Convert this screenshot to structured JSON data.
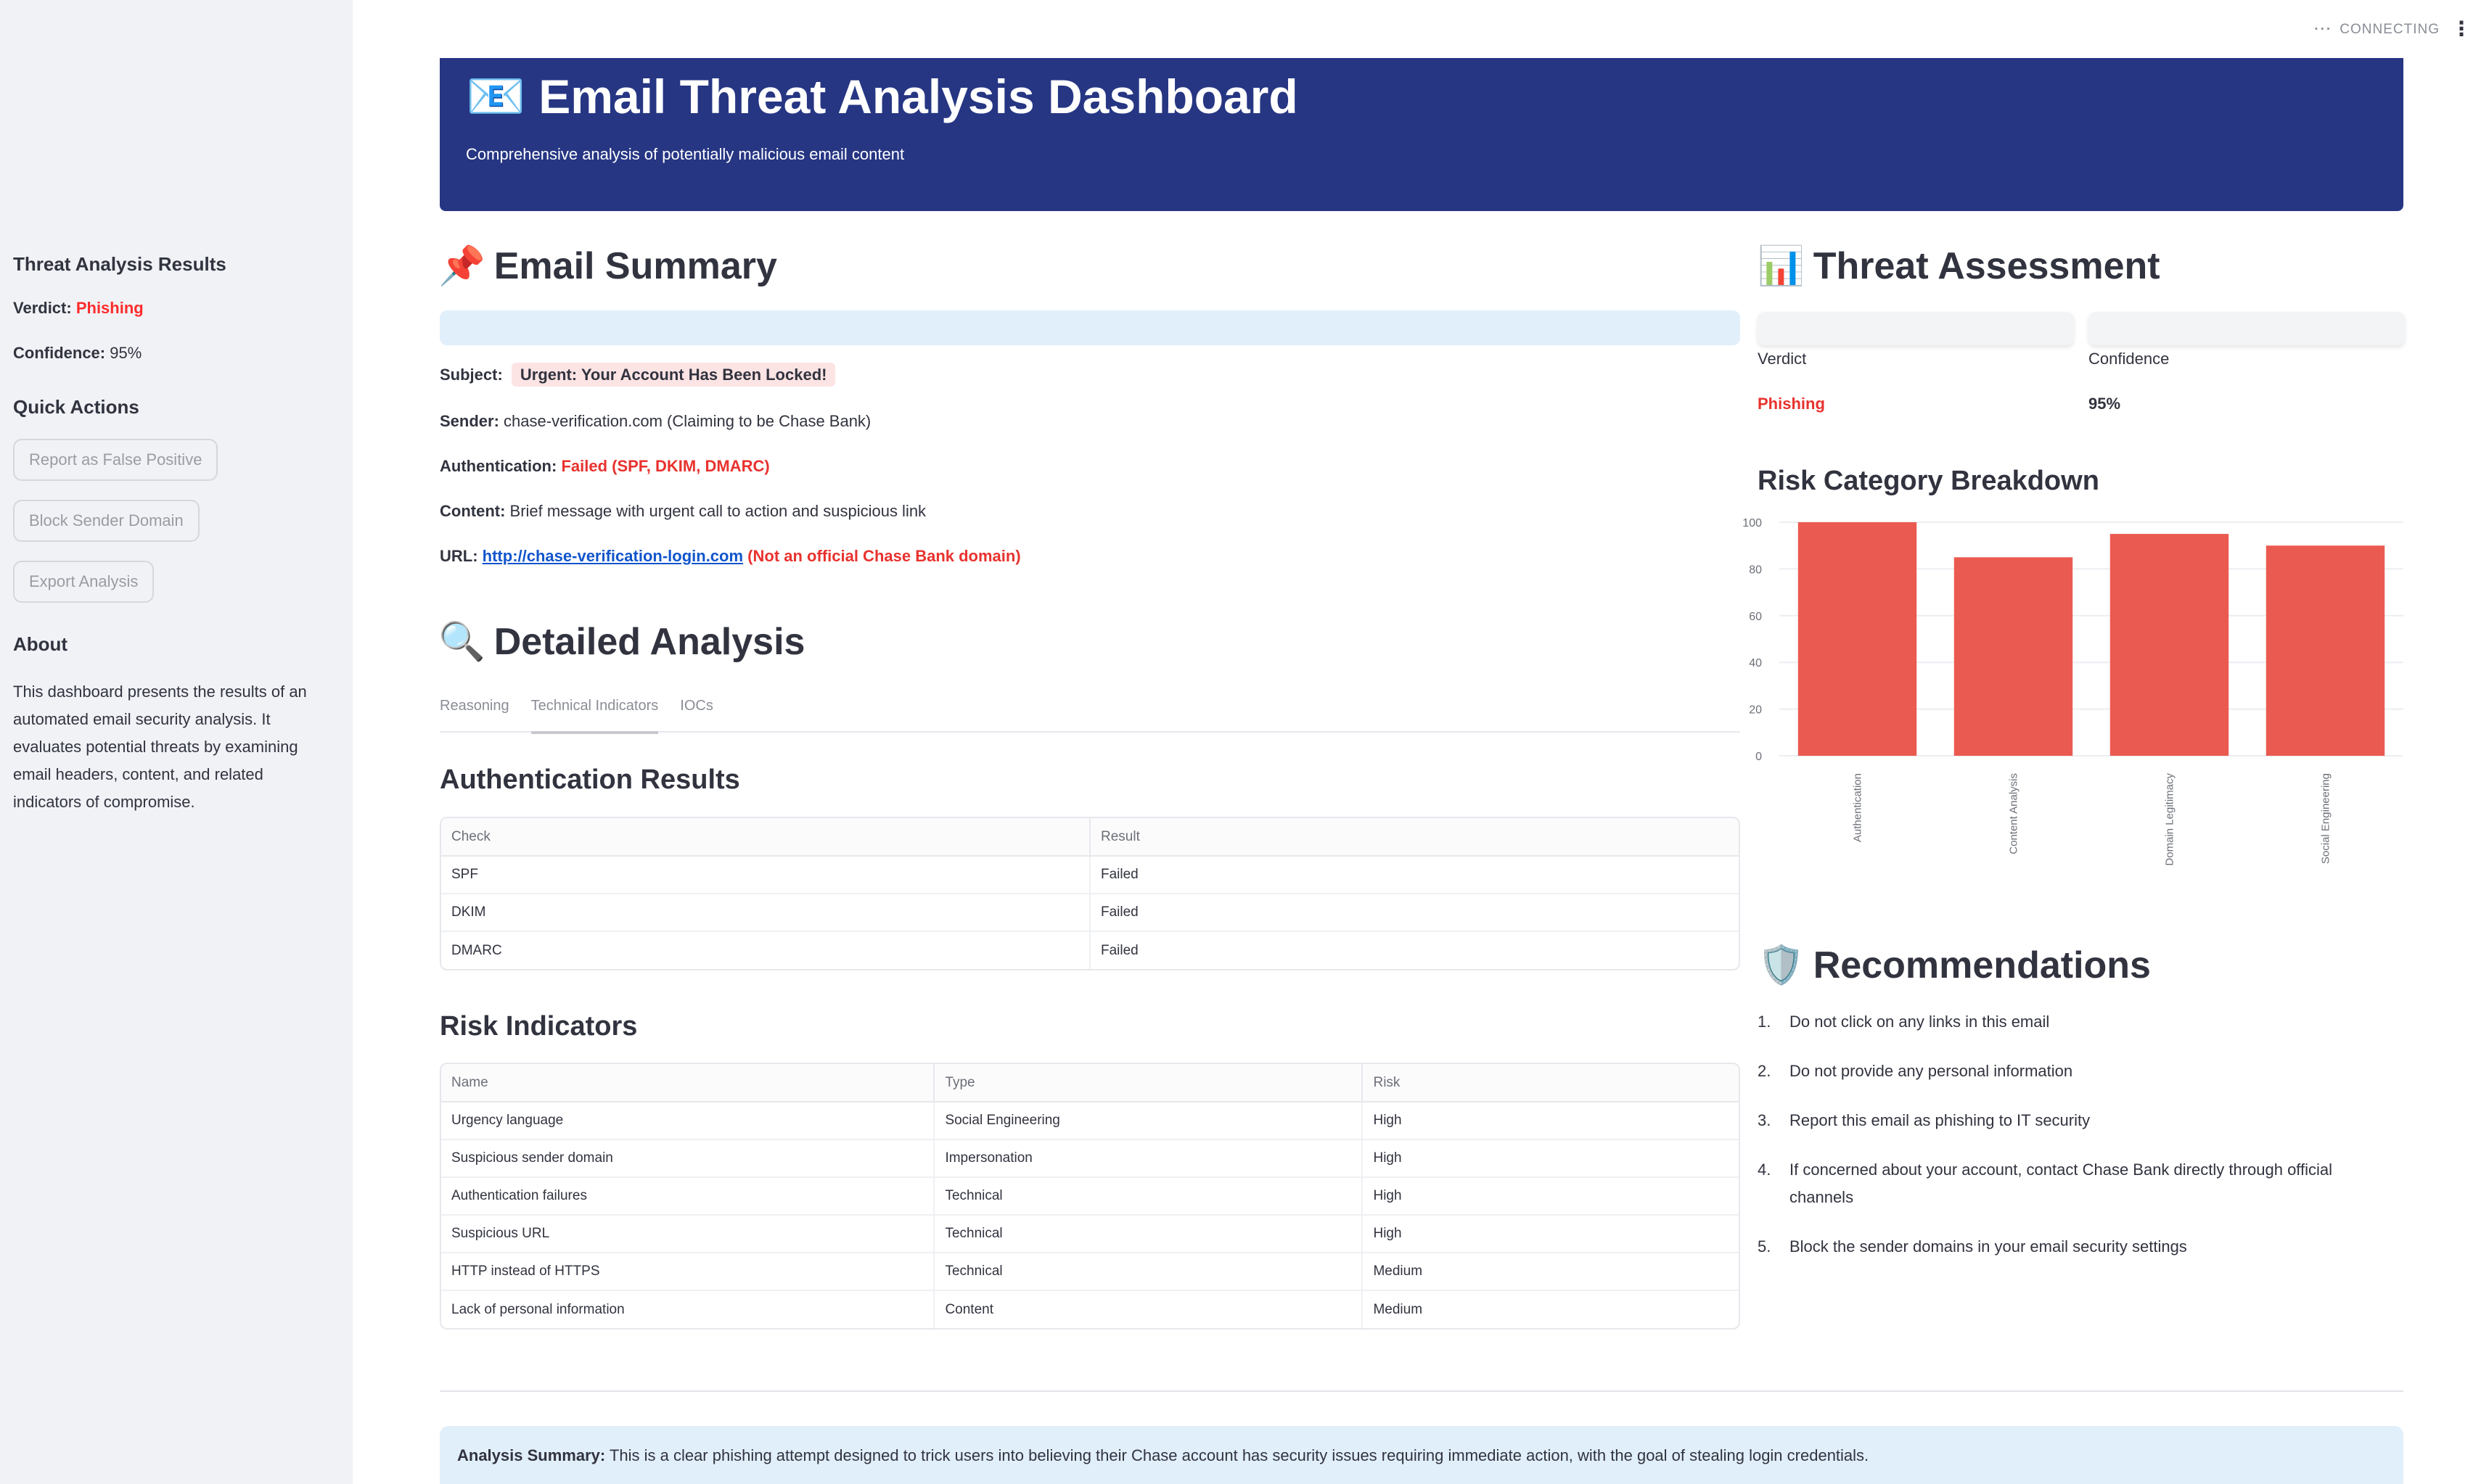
{
  "status": {
    "text": "CONNECTING"
  },
  "sidebar": {
    "results_title": "Threat Analysis Results",
    "verdict_label": "Verdict:",
    "verdict_value": "Phishing",
    "confidence_label": "Confidence:",
    "confidence_value": "95%",
    "actions_title": "Quick Actions",
    "buttons": [
      "Report as False Positive",
      "Block Sender Domain",
      "Export Analysis"
    ],
    "about_title": "About",
    "about_text": "This dashboard presents the results of an automated email security analysis. It evaluates potential threats by examining email headers, content, and related indicators of compromise."
  },
  "header": {
    "icon": "📧",
    "title": "Email Threat Analysis Dashboard",
    "subtitle": "Comprehensive analysis of potentially malicious email content"
  },
  "email_summary": {
    "icon": "📌",
    "title": "Email Summary",
    "subject_label": "Subject:",
    "subject_value": "Urgent: Your Account Has Been Locked!",
    "sender_label": "Sender:",
    "sender_value": "chase-verification.com (Claiming to be Chase Bank)",
    "auth_label": "Authentication:",
    "auth_value": "Failed (SPF, DKIM, DMARC)",
    "content_label": "Content:",
    "content_value": "Brief message with urgent call to action and suspicious link",
    "url_label": "URL:",
    "url_value": "http://chase-verification-login.com",
    "url_note": "(Not an official Chase Bank domain)"
  },
  "detailed_analysis": {
    "icon": "🔍",
    "title": "Detailed Analysis",
    "tabs": [
      "Reasoning",
      "Technical Indicators",
      "IOCs"
    ],
    "active_tab": "Technical Indicators",
    "auth_title": "Authentication Results",
    "auth_headers": [
      "Check",
      "Result"
    ],
    "auth_rows": [
      {
        "check": "SPF",
        "result": "Failed"
      },
      {
        "check": "DKIM",
        "result": "Failed"
      },
      {
        "check": "DMARC",
        "result": "Failed"
      }
    ],
    "risk_title": "Risk Indicators",
    "risk_headers": [
      "Name",
      "Type",
      "Risk"
    ],
    "risk_rows": [
      {
        "name": "Urgency language",
        "type": "Social Engineering",
        "risk": "High"
      },
      {
        "name": "Suspicious sender domain",
        "type": "Impersonation",
        "risk": "High"
      },
      {
        "name": "Authentication failures",
        "type": "Technical",
        "risk": "High"
      },
      {
        "name": "Suspicious URL",
        "type": "Technical",
        "risk": "High"
      },
      {
        "name": "HTTP instead of HTTPS",
        "type": "Technical",
        "risk": "Medium"
      },
      {
        "name": "Lack of personal information",
        "type": "Content",
        "risk": "Medium"
      }
    ]
  },
  "threat_assessment": {
    "icon": "📊",
    "title": "Threat Assessment",
    "verdict_label": "Verdict",
    "verdict_value": "Phishing",
    "confidence_label": "Confidence",
    "confidence_value": "95%",
    "breakdown_title": "Risk Category Breakdown"
  },
  "chart_data": {
    "type": "bar",
    "categories": [
      "Authentication",
      "Content Analysis",
      "Domain Legitimacy",
      "Social Engineering"
    ],
    "values": [
      100,
      85,
      95,
      90
    ],
    "ylim": [
      0,
      100
    ],
    "yticks": [
      0,
      20,
      40,
      60,
      80,
      100
    ],
    "color": "#eb5a50",
    "grid": true
  },
  "recommendations": {
    "icon": "🛡️",
    "title": "Recommendations",
    "items": [
      "Do not click on any links in this email",
      "Do not provide any personal information",
      "Report this email as phishing to IT security",
      "If concerned about your account, contact Chase Bank directly through official channels",
      "Block the sender domains in your email security settings"
    ]
  },
  "analysis_summary": {
    "label": "Analysis Summary:",
    "text": "This is a clear phishing attempt designed to trick users into believing their Chase account has security issues requiring immediate action, with the goal of stealing login credentials."
  },
  "colors": {
    "banner": "#263683",
    "danger": "#e8322e",
    "warning": "#f0a500",
    "bar": "#eb5a50"
  }
}
